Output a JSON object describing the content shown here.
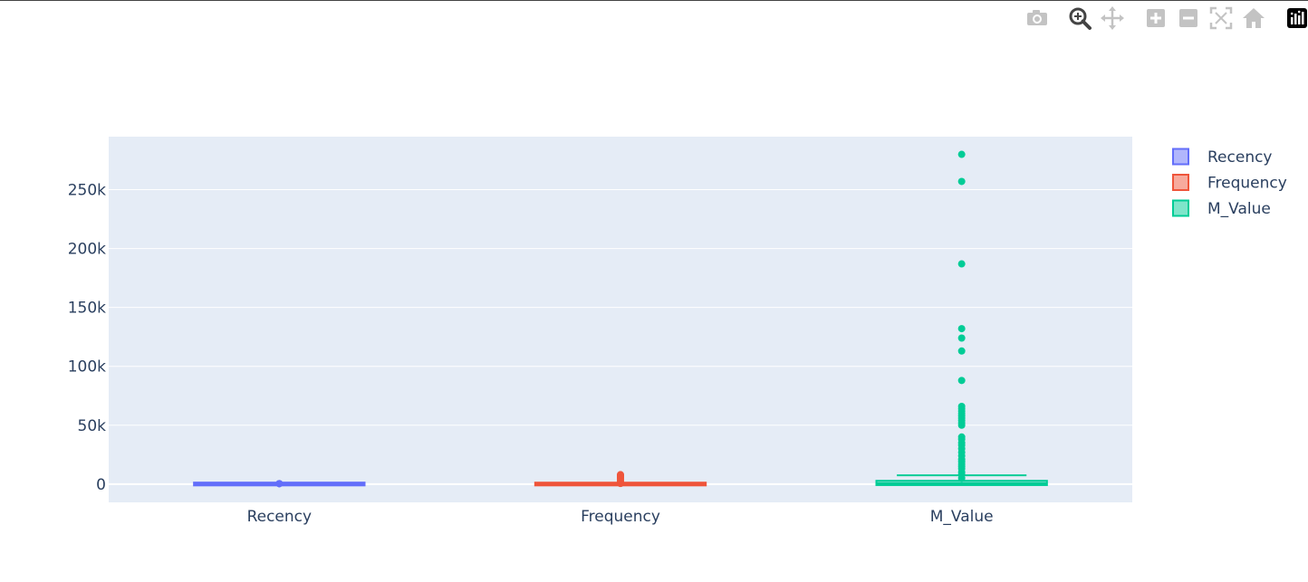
{
  "modebar": {
    "buttons": [
      {
        "name": "camera-icon",
        "title": "Download plot as a png"
      },
      {
        "name": "zoom-icon",
        "title": "Zoom"
      },
      {
        "name": "pan-icon",
        "title": "Pan"
      },
      {
        "name": "zoom-in-icon",
        "title": "Zoom in"
      },
      {
        "name": "zoom-out-icon",
        "title": "Zoom out"
      },
      {
        "name": "autoscale-icon",
        "title": "Autoscale"
      },
      {
        "name": "reset-axes-icon",
        "title": "Reset axes"
      },
      {
        "name": "plotly-logo-icon",
        "title": "Produced with Plotly"
      }
    ]
  },
  "colors": {
    "plot_bg": "#e5ecf6",
    "grid": "#ffffff",
    "text": "#2a3f5f",
    "Recency": "#636efa",
    "Frequency": "#ef553b",
    "M_Value": "#00cc96"
  },
  "chart_data": {
    "type": "box",
    "categories": [
      "Recency",
      "Frequency",
      "M_Value"
    ],
    "y_ticks": [
      {
        "value": 0,
        "label": "0"
      },
      {
        "value": 50000,
        "label": "50k"
      },
      {
        "value": 100000,
        "label": "100k"
      },
      {
        "value": 150000,
        "label": "150k"
      },
      {
        "value": 200000,
        "label": "200k"
      },
      {
        "value": 250000,
        "label": "250k"
      }
    ],
    "ylim": [
      -15500,
      295000
    ],
    "grid": true,
    "legend_position": "top-right",
    "legend": [
      "Recency",
      "Frequency",
      "M_Value"
    ],
    "series": [
      {
        "name": "Recency",
        "min": 0,
        "q1": 17,
        "median": 50,
        "q3": 141,
        "max": 373,
        "outliers": [
          370,
          372,
          373
        ]
      },
      {
        "name": "Frequency",
        "min": 1,
        "q1": 17,
        "median": 41,
        "q3": 100,
        "max": 224,
        "outliers": [
          500,
          1000,
          2000,
          3000,
          4500,
          5500,
          6500,
          7500,
          8000
        ]
      },
      {
        "name": "M_Value",
        "min": 0,
        "q1": 307,
        "median": 674,
        "q3": 1661,
        "max": 3690,
        "upper_fence": 7500,
        "outliers": [
          5000,
          8000,
          10000,
          13000,
          15000,
          17000,
          19000,
          21000,
          24000,
          27000,
          30000,
          33000,
          35000,
          38000,
          40000,
          50000,
          52000,
          54000,
          56000,
          58000,
          60000,
          62000,
          64000,
          66000,
          88000,
          113000,
          124000,
          132000,
          187000,
          257000,
          280000
        ]
      }
    ]
  }
}
